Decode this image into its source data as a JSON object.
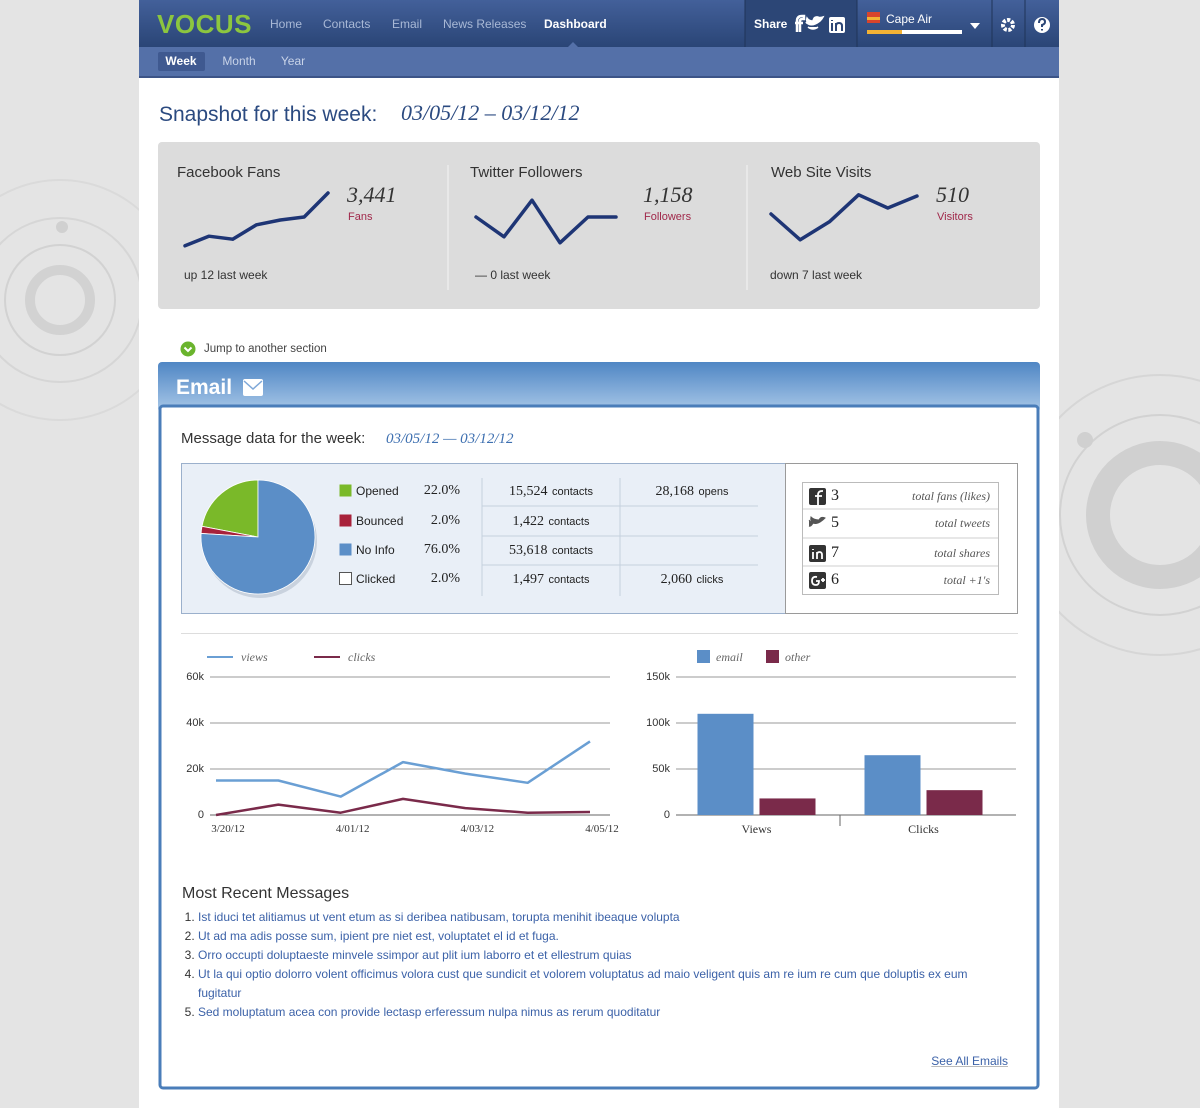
{
  "header": {
    "logo": "VOCUS",
    "nav": [
      "Home",
      "Contacts",
      "Email",
      "News Releases",
      "Dashboard"
    ],
    "active_nav": 4,
    "share": "Share",
    "account": "Cape Air"
  },
  "subnav": {
    "items": [
      "Week",
      "Month",
      "Year"
    ],
    "active": 0
  },
  "snapshot": {
    "title": "Snapshot for this week:",
    "range": "03/05/12 – 03/12/12",
    "cards": [
      {
        "title": "Facebook Fans",
        "value": "3,441",
        "unit": "Fans",
        "change": "up 12 last week",
        "type": "line",
        "values": [
          7,
          23,
          18,
          42,
          50,
          55,
          95
        ],
        "ylim": [
          0,
          100
        ],
        "color": "#1e3575"
      },
      {
        "title": "Twitter Followers",
        "value": "1,158",
        "unit": "Followers",
        "change": "— 0 last week",
        "type": "line",
        "values": [
          55,
          22,
          83,
          12,
          55,
          55
        ],
        "ylim": [
          0,
          100
        ],
        "color": "#1e3575"
      },
      {
        "title": "Web Site Visits",
        "value": "510",
        "unit": "Visitors",
        "change": "down 7 last week",
        "type": "line",
        "values": [
          60,
          17,
          47,
          92,
          70,
          90
        ],
        "ylim": [
          0,
          100
        ],
        "color": "#1e3575"
      }
    ]
  },
  "jump": "Jump to another section",
  "email": {
    "title": "Email",
    "subtitle": "Message data for the week:",
    "range": "03/05/12 — 03/12/12",
    "breakdown": {
      "type": "pie",
      "categories": [
        "Opened",
        "Bounced",
        "No Info",
        "Clicked"
      ],
      "values": [
        22,
        2,
        76,
        2
      ],
      "value_labels": [
        "22.0%",
        "2.0%",
        "76.0%",
        "2.0%"
      ],
      "colors": [
        "#7ab929",
        "#a8213a",
        "#5b8ec7",
        null
      ],
      "contacts": [
        "15,524",
        "1,422",
        "53,618",
        "1,497"
      ],
      "contacts_unit": "contacts",
      "totals": [
        {
          "count": "28,168",
          "unit": "opens"
        },
        null,
        null,
        {
          "count": "2,060",
          "unit": "clicks"
        }
      ]
    },
    "social": [
      {
        "network": "facebook",
        "count": "3",
        "label": "total fans (likes)"
      },
      {
        "network": "twitter",
        "count": "5",
        "label": "total tweets"
      },
      {
        "network": "linkedin",
        "count": "7",
        "label": "total shares"
      },
      {
        "network": "google",
        "count": "6",
        "label": "total +1's"
      }
    ],
    "traffic": {
      "type": "line",
      "categories": [
        "3/20/12",
        null,
        "4/01/12",
        null,
        "4/03/12",
        null,
        "4/05/12"
      ],
      "series": [
        {
          "name": "views",
          "color": "#6a9fd4",
          "values": [
            15000,
            15000,
            8000,
            23000,
            18000,
            14000,
            32000
          ]
        },
        {
          "name": "clicks",
          "color": "#7a2a4a",
          "values": [
            0,
            4500,
            1000,
            7000,
            3000,
            1000,
            1300
          ]
        }
      ],
      "ylim": [
        0,
        60000
      ],
      "yticks": [
        0,
        {
          "value": 20000,
          "label": "20k"
        },
        {
          "value": 40000,
          "label": "40k"
        },
        {
          "value": 60000,
          "label": "60k"
        }
      ],
      "grid": true
    },
    "channels": {
      "type": "bar",
      "categories": [
        "Views",
        "Clicks"
      ],
      "series": [
        {
          "name": "email",
          "color": "#5b8ec7",
          "values": [
            110000,
            65000
          ]
        },
        {
          "name": "other",
          "color": "#7a2a4a",
          "values": [
            18000,
            27000
          ]
        }
      ],
      "ylim": [
        0,
        150000
      ],
      "yticks": [
        0,
        {
          "value": 50000,
          "label": "50k"
        },
        {
          "value": 100000,
          "label": "100k"
        },
        {
          "value": 150000,
          "label": "150k"
        }
      ],
      "grid": true
    },
    "recent": {
      "title": "Most Recent Messages",
      "items": [
        "Ist iduci tet alitiamus ut vent etum as si deribea natibusam, torupta menihit ibeaque volupta",
        "Ut ad ma adis posse sum, ipient pre niet est, voluptatet el id et fuga.",
        "Orro occupti doluptaeste minvele ssimpor aut plit ium laborro et et ellestrum quias",
        "Ut la qui optio dolorro volent officimus volora cust que sundicit et volorem voluptatus ad maio veligent quis am re ium re cum que doluptis ex eum fugitatur",
        "Sed moluptatum acea con provide lectasp erferessum nulpa nimus as rerum quoditatur"
      ],
      "link": "See All Emails"
    }
  }
}
